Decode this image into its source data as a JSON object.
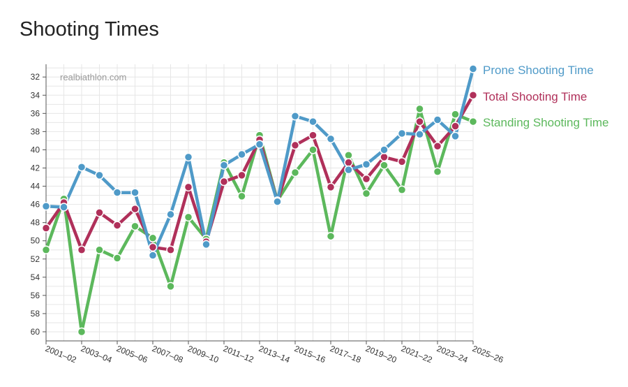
{
  "chart_data": {
    "type": "line",
    "title": "Shooting Times",
    "credit": "realbiathlon.com",
    "ylim": [
      61,
      30.6
    ],
    "y_inverted": true,
    "yticks": [
      32,
      34,
      36,
      38,
      40,
      42,
      44,
      46,
      48,
      50,
      52,
      54,
      56,
      58,
      60
    ],
    "x": [
      "2001–02",
      "2002–03",
      "2003–04",
      "2004–05",
      "2005–06",
      "2006–07",
      "2007–08",
      "2008–09",
      "2009–10",
      "2010–11",
      "2011–12",
      "2012–13",
      "2013–14",
      "2014–15",
      "2015–16",
      "2016–17",
      "2017–18",
      "2018–19",
      "2019–20",
      "2020–21",
      "2021–22",
      "2022–23",
      "2023–24",
      "2024–25",
      "2025–26"
    ],
    "xtick_labels": [
      "2001–02",
      "2003–04",
      "2005–06",
      "2007–08",
      "2009–10",
      "2011–12",
      "2013–14",
      "2015–16",
      "2017–18",
      "2019–20",
      "2021–22",
      "2023–24",
      "2025–26"
    ],
    "series": [
      {
        "name": "Standing Shooting Time",
        "color": "#5cb85c",
        "values": [
          51.0,
          45.4,
          60.0,
          51.0,
          51.9,
          48.4,
          49.7,
          55.0,
          47.4,
          49.8,
          41.4,
          45.1,
          38.4,
          45.6,
          42.5,
          40.0,
          49.5,
          40.6,
          44.8,
          41.7,
          44.4,
          35.5,
          42.4,
          36.1,
          36.9
        ]
      },
      {
        "name": "Total Shooting Time",
        "color": "#b0305a",
        "values": [
          48.6,
          45.8,
          51.0,
          46.9,
          48.3,
          46.5,
          50.7,
          51.0,
          44.1,
          50.1,
          43.5,
          42.8,
          38.9,
          45.7,
          39.5,
          38.4,
          44.1,
          41.4,
          43.2,
          40.8,
          41.3,
          36.9,
          39.6,
          37.4,
          34.0
        ]
      },
      {
        "name": "Prone Shooting Time",
        "color": "#4f9ac8",
        "values": [
          46.2,
          46.3,
          41.9,
          42.8,
          44.7,
          44.7,
          51.6,
          47.1,
          40.8,
          50.4,
          41.7,
          40.5,
          39.4,
          45.7,
          36.3,
          36.9,
          38.8,
          42.2,
          41.6,
          40.0,
          38.2,
          38.3,
          36.7,
          38.5,
          31.1
        ]
      }
    ],
    "legend": [
      {
        "name": "Prone Shooting Time",
        "color": "#4f9ac8"
      },
      {
        "name": "Total Shooting Time",
        "color": "#b0305a"
      },
      {
        "name": "Standing Shooting Time",
        "color": "#5cb85c"
      }
    ],
    "grid": true
  }
}
